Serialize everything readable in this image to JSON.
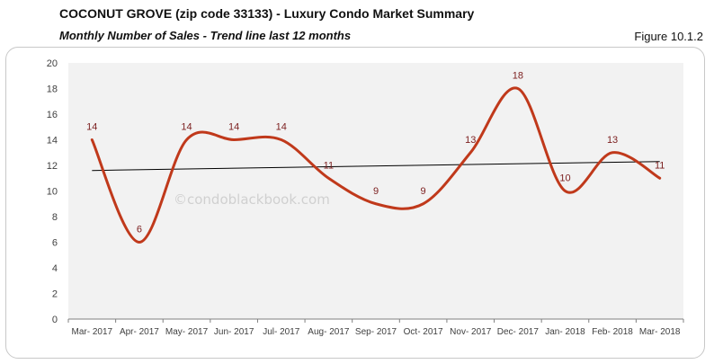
{
  "header": {
    "title": "COCONUT GROVE (zip code 33133) - Luxury Condo Market Summary",
    "subtitle": "Monthly Number of Sales - Trend line last 12 months",
    "figure_label": "Figure 10.1.2"
  },
  "watermark": "©condoblackbook.com",
  "colors": {
    "series": "#c0391b",
    "trend": "#000000",
    "plot_bg": "#f2f2f2",
    "label": "#7b1e1e"
  },
  "chart_data": {
    "type": "line",
    "title": "Monthly Number of Sales - Trend line last 12 months",
    "xlabel": "",
    "ylabel": "",
    "ylim": [
      0,
      20
    ],
    "yticks": [
      0,
      2,
      4,
      6,
      8,
      10,
      12,
      14,
      16,
      18,
      20
    ],
    "grid": false,
    "legend": "none",
    "categories": [
      "Mar- 2017",
      "Apr- 2017",
      "May- 2017",
      "Jun- 2017",
      "Jul- 2017",
      "Aug- 2017",
      "Sep- 2017",
      "Oct- 2017",
      "Nov- 2017",
      "Dec- 2017",
      "Jan- 2018",
      "Feb- 2018",
      "Mar- 2018"
    ],
    "series": [
      {
        "name": "Number of Sales",
        "values": [
          14,
          6,
          14,
          14,
          14,
          11,
          9,
          9,
          13,
          18,
          10,
          13,
          11
        ],
        "smoothed": true
      },
      {
        "name": "Linear trend",
        "values": [
          11.6,
          12.3
        ],
        "type": "trendline"
      }
    ]
  }
}
